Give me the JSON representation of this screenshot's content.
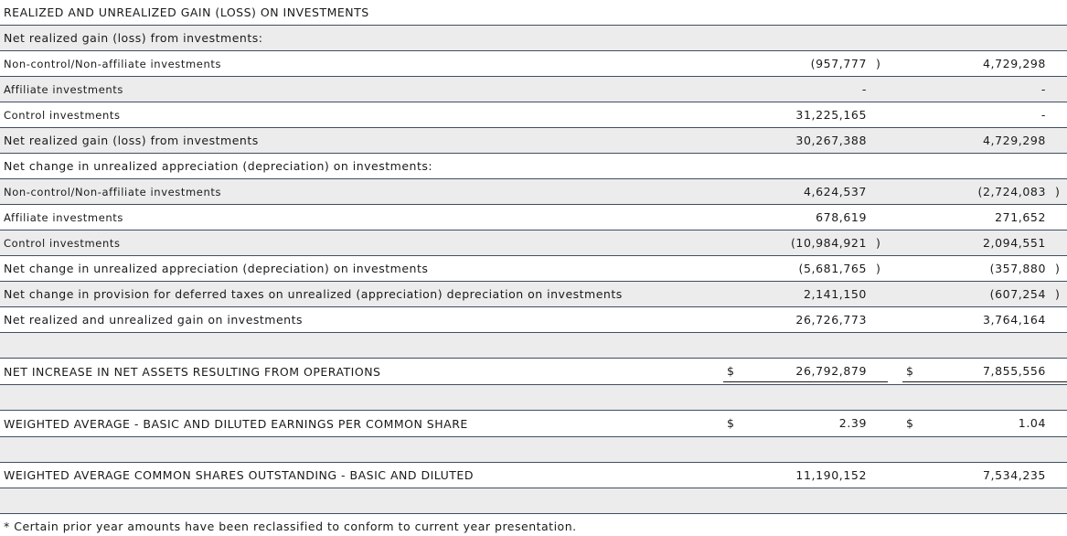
{
  "rows": [
    {
      "label": "REALIZED AND UNREALIZED GAIN (LOSS) ON INVESTMENTS",
      "v1": "",
      "v2": ""
    },
    {
      "label": "Net realized gain (loss) from investments:",
      "v1": "",
      "v2": ""
    },
    {
      "label": "Non-control/Non-affiliate investments",
      "v1": "(957,777",
      "v2": "4,729,298"
    },
    {
      "label": "Affiliate investments",
      "v1": "-",
      "v2": "-"
    },
    {
      "label": "Control investments",
      "v1": "31,225,165",
      "v2": "-"
    },
    {
      "label": "Net realized gain (loss) from investments",
      "v1": "30,267,388",
      "v2": "4,729,298"
    },
    {
      "label": "Net change in unrealized appreciation (depreciation) on investments:",
      "v1": "",
      "v2": ""
    },
    {
      "label": "Non-control/Non-affiliate investments",
      "v1": "4,624,537",
      "v2": "(2,724,083"
    },
    {
      "label": "Affiliate investments",
      "v1": "678,619",
      "v2": "271,652"
    },
    {
      "label": "Control investments",
      "v1": "(10,984,921",
      "v2": "2,094,551"
    },
    {
      "label": "Net change in unrealized appreciation (depreciation) on investments",
      "v1": "(5,681,765",
      "v2": "(357,880"
    },
    {
      "label": "Net change in provision for deferred taxes on unrealized (appreciation) depreciation on investments",
      "v1": "2,141,150",
      "v2": "(607,254"
    },
    {
      "label": "Net realized and unrealized gain on investments",
      "v1": "26,726,773",
      "v2": "3,764,164"
    },
    {
      "label": "",
      "v1": "",
      "v2": ""
    },
    {
      "label": "NET INCREASE IN NET ASSETS RESULTING FROM OPERATIONS",
      "v1": "26,792,879",
      "v2": "7,855,556",
      "dollar": "$"
    },
    {
      "label": "",
      "v1": "",
      "v2": ""
    },
    {
      "label": "WEIGHTED AVERAGE - BASIC AND DILUTED EARNINGS PER COMMON SHARE",
      "v1": "2.39",
      "v2": "1.04",
      "dollar": "$"
    },
    {
      "label": "",
      "v1": "",
      "v2": ""
    },
    {
      "label": "WEIGHTED AVERAGE COMMON SHARES OUTSTANDING - BASIC AND DILUTED",
      "v1": "11,190,152",
      "v2": "7,534,235"
    },
    {
      "label": "",
      "v1": "",
      "v2": ""
    }
  ],
  "close_paren": ")",
  "footnote": "* Certain prior year amounts have been reclassified to conform to current year presentation."
}
